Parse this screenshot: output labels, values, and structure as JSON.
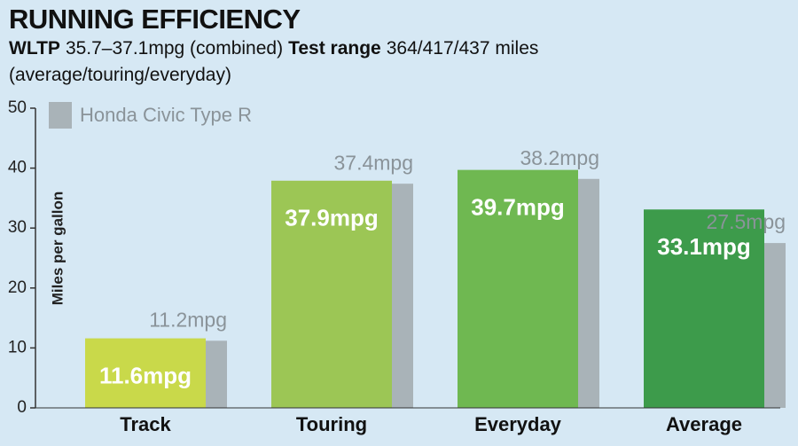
{
  "chart_data": {
    "type": "bar",
    "title": "RUNNING EFFICIENCY",
    "subtitle": [
      {
        "text": "WLTP",
        "bold": true
      },
      {
        "text": "35.7–37.1mpg (combined)",
        "bold": false
      },
      {
        "text": "Test range",
        "bold": true
      },
      {
        "text": "364/417/437 miles (average/touring/everyday)",
        "bold": false
      }
    ],
    "y_label": "Miles per gallon",
    "categories": [
      "Track",
      "Touring",
      "Everyday",
      "Average"
    ],
    "series": [
      {
        "colors": [
          "#c9d94a",
          "#9cc655",
          "#6fb851",
          "#3d9b4b"
        ],
        "values": [
          11.6,
          37.9,
          39.7,
          33.1
        ],
        "value_labels": [
          "11.6mpg",
          "37.9mpg",
          "39.7mpg",
          "33.1mpg"
        ]
      },
      {
        "name": "Honda Civic Type R",
        "color": "#a9b3b8",
        "values": [
          11.2,
          37.4,
          38.2,
          27.5
        ],
        "value_labels": [
          "11.2mpg",
          "37.4mpg",
          "38.2mpg",
          "27.5mpg"
        ]
      }
    ],
    "ylim": [
      0,
      50
    ],
    "yticks": [
      0,
      10,
      20,
      30,
      40,
      50
    ],
    "background": "#d6e8f4"
  }
}
